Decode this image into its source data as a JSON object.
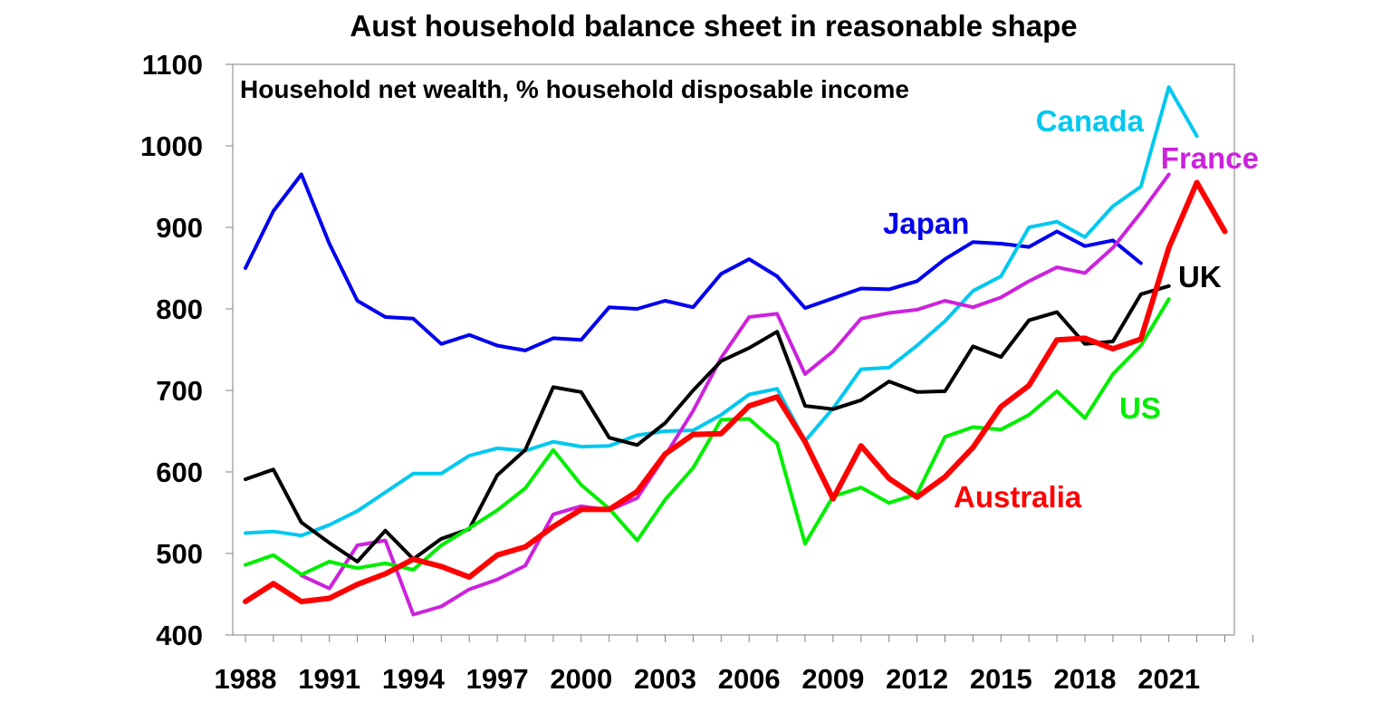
{
  "chart_data": {
    "type": "line",
    "title": "Aust household balance sheet in reasonable shape",
    "subtitle": "Household net wealth, % household disposable income",
    "xlabel": "",
    "ylabel": "",
    "ylim": [
      400,
      1100
    ],
    "yticks": [
      400,
      500,
      600,
      700,
      800,
      900,
      1000,
      1100
    ],
    "xlim": [
      1988,
      2024
    ],
    "xtick_labels": [
      "1988",
      "1991",
      "1994",
      "1997",
      "2000",
      "2003",
      "2006",
      "2009",
      "2012",
      "2015",
      "2018",
      "2021"
    ],
    "grid": false,
    "series": [
      {
        "name": "Japan",
        "color": "#0000ee",
        "start_year": 1988,
        "values": [
          850,
          920,
          965,
          880,
          810,
          790,
          788,
          757,
          768,
          755,
          749,
          764,
          762,
          802,
          800,
          810,
          802,
          843,
          861,
          840,
          801,
          813,
          825,
          824,
          834,
          861,
          882,
          880,
          876,
          895,
          877,
          884,
          856
        ]
      },
      {
        "name": "Canada",
        "color": "#00c8f0",
        "start_year": 1988,
        "values": [
          525,
          527,
          522,
          535,
          552,
          575,
          598,
          598,
          620,
          629,
          626,
          637,
          631,
          632,
          645,
          650,
          651,
          670,
          695,
          702,
          638,
          678,
          726,
          728,
          755,
          785,
          822,
          840,
          900,
          907,
          888,
          926,
          950,
          1072,
          1012
        ]
      },
      {
        "name": "France",
        "color": "#cc22dd",
        "start_year": 1990,
        "values": [
          473,
          457,
          510,
          516,
          425,
          435,
          456,
          468,
          485,
          548,
          558,
          553,
          568,
          620,
          675,
          740,
          790,
          794,
          720,
          748,
          788,
          795,
          799,
          810,
          802,
          814,
          834,
          851,
          844,
          875,
          918,
          965
        ]
      },
      {
        "name": "UK",
        "color": "#000000",
        "start_year": 1988,
        "values": [
          591,
          603,
          538,
          513,
          490,
          528,
          493,
          518,
          530,
          596,
          627,
          704,
          698,
          642,
          633,
          660,
          700,
          736,
          752,
          772,
          681,
          677,
          688,
          711,
          698,
          699,
          754,
          741,
          786,
          796,
          757,
          760,
          818,
          828
        ]
      },
      {
        "name": "US",
        "color": "#00ee00",
        "start_year": 1988,
        "values": [
          486,
          498,
          474,
          490,
          482,
          488,
          480,
          510,
          531,
          553,
          580,
          627,
          584,
          555,
          516,
          566,
          605,
          664,
          665,
          635,
          512,
          570,
          581,
          562,
          573,
          643,
          655,
          652,
          670,
          699,
          666,
          720,
          755,
          812
        ]
      },
      {
        "name": "Australia",
        "color": "#ff0000",
        "start_year": 1988,
        "values": [
          441,
          463,
          441,
          445,
          462,
          475,
          493,
          484,
          471,
          498,
          508,
          533,
          554,
          554,
          576,
          622,
          646,
          647,
          681,
          692,
          637,
          567,
          632,
          592,
          569,
          594,
          630,
          680,
          706,
          762,
          764,
          751,
          763,
          875,
          955,
          895
        ]
      }
    ]
  }
}
